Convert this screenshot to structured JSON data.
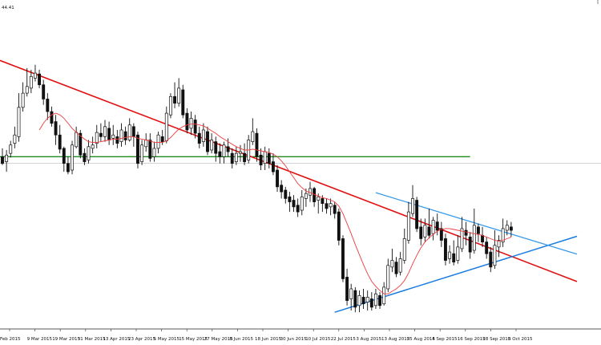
{
  "chart_data": {
    "type": "candlestick",
    "header_label": "44.41",
    "x_tick_labels": [
      "Feb 2015",
      "9 Mar 2015",
      "19 Mar 2015",
      "31 Mar 2015",
      "13 Apr 2015",
      "23 Apr 2015",
      "5 May 2015",
      "15 May 2015",
      "27 May 2015",
      "8 Jun 2015",
      "18 Jun 2015",
      "30 Jun 2015",
      "10 Jul 2015",
      "22 Jul 2015",
      "3 Aug 2015",
      "13 Aug 2015",
      "25 Aug 2015",
      "4 Sep 2015",
      "16 Sep 2015",
      "28 Sep 2015",
      "8 Oct 2015"
    ],
    "candle_values": [
      [
        186,
        178,
        196,
        176
      ],
      [
        180,
        188,
        194,
        168
      ],
      [
        190,
        200,
        205,
        185
      ],
      [
        202,
        212,
        222,
        196
      ],
      [
        210,
        245,
        262,
        204
      ],
      [
        245,
        262,
        275,
        240
      ],
      [
        262,
        270,
        292,
        258
      ],
      [
        268,
        282,
        290,
        262
      ],
      [
        280,
        286,
        296,
        276
      ],
      [
        285,
        272,
        290,
        268
      ],
      [
        272,
        255,
        278,
        248
      ],
      [
        255,
        240,
        262,
        230
      ],
      [
        240,
        226,
        246,
        222
      ],
      [
        228,
        212,
        236,
        200
      ],
      [
        212,
        195,
        224,
        190
      ],
      [
        196,
        178,
        198,
        168
      ],
      [
        178,
        168,
        186,
        165
      ],
      [
        170,
        200,
        205,
        165
      ],
      [
        198,
        215,
        222,
        196
      ],
      [
        214,
        188,
        218,
        184
      ],
      [
        190,
        180,
        196,
        176
      ],
      [
        182,
        198,
        206,
        178
      ],
      [
        196,
        200,
        210,
        190
      ],
      [
        202,
        215,
        224,
        196
      ],
      [
        214,
        210,
        226,
        204
      ],
      [
        210,
        222,
        230,
        204
      ],
      [
        220,
        206,
        228,
        200
      ],
      [
        208,
        212,
        224,
        200
      ],
      [
        210,
        202,
        218,
        196
      ],
      [
        204,
        218,
        226,
        198
      ],
      [
        216,
        206,
        222,
        200
      ],
      [
        206,
        224,
        232,
        204
      ],
      [
        222,
        210,
        226,
        198
      ],
      [
        212,
        178,
        216,
        172
      ],
      [
        180,
        200,
        206,
        176
      ],
      [
        198,
        206,
        214,
        192
      ],
      [
        206,
        184,
        214,
        180
      ],
      [
        186,
        196,
        204,
        180
      ],
      [
        196,
        212,
        216,
        190
      ],
      [
        210,
        204,
        218,
        200
      ],
      [
        205,
        238,
        246,
        202
      ],
      [
        236,
        258,
        262,
        232
      ],
      [
        258,
        250,
        275,
        244
      ],
      [
        250,
        268,
        280,
        246
      ],
      [
        266,
        236,
        272,
        232
      ],
      [
        238,
        218,
        244,
        214
      ],
      [
        220,
        232,
        240,
        212
      ],
      [
        230,
        214,
        236,
        208
      ],
      [
        214,
        202,
        222,
        196
      ],
      [
        204,
        218,
        226,
        198
      ],
      [
        216,
        192,
        222,
        188
      ],
      [
        194,
        206,
        214,
        190
      ],
      [
        204,
        190,
        210,
        180
      ],
      [
        192,
        186,
        202,
        178
      ],
      [
        186,
        200,
        204,
        178
      ],
      [
        198,
        192,
        208,
        186
      ],
      [
        190,
        178,
        196,
        172
      ],
      [
        180,
        190,
        198,
        176
      ],
      [
        190,
        192,
        200,
        180
      ],
      [
        190,
        180,
        202,
        176
      ],
      [
        182,
        206,
        212,
        178
      ],
      [
        204,
        216,
        232,
        200
      ],
      [
        214,
        186,
        220,
        180
      ],
      [
        188,
        176,
        196,
        170
      ],
      [
        178,
        192,
        198,
        170
      ],
      [
        190,
        178,
        196,
        172
      ],
      [
        180,
        168,
        190,
        164
      ],
      [
        170,
        150,
        176,
        144
      ],
      [
        152,
        144,
        158,
        136
      ],
      [
        146,
        136,
        150,
        130
      ],
      [
        138,
        132,
        144,
        120
      ],
      [
        134,
        126,
        140,
        120
      ],
      [
        128,
        120,
        136,
        114
      ],
      [
        122,
        138,
        146,
        116
      ],
      [
        136,
        142,
        148,
        126
      ],
      [
        140,
        148,
        156,
        132
      ],
      [
        148,
        132,
        150,
        126
      ],
      [
        134,
        138,
        142,
        118
      ],
      [
        136,
        130,
        140,
        120
      ],
      [
        130,
        124,
        136,
        118
      ],
      [
        126,
        130,
        136,
        116
      ],
      [
        128,
        118,
        132,
        112
      ],
      [
        120,
        86,
        124,
        80
      ],
      [
        88,
        40,
        92,
        36
      ],
      [
        42,
        14,
        52,
        8
      ],
      [
        16,
        28,
        34,
        2
      ],
      [
        26,
        6,
        30,
        0
      ],
      [
        8,
        20,
        26,
        0
      ],
      [
        18,
        10,
        28,
        4
      ],
      [
        12,
        18,
        26,
        2
      ],
      [
        16,
        6,
        24,
        2
      ],
      [
        8,
        22,
        28,
        4
      ],
      [
        20,
        8,
        24,
        4
      ],
      [
        10,
        30,
        36,
        8
      ],
      [
        28,
        56,
        64,
        24
      ],
      [
        54,
        62,
        76,
        48
      ],
      [
        60,
        46,
        66,
        42
      ],
      [
        48,
        64,
        72,
        44
      ],
      [
        62,
        88,
        100,
        58
      ],
      [
        86,
        120,
        132,
        82
      ],
      [
        118,
        136,
        152,
        114
      ],
      [
        134,
        100,
        138,
        96
      ],
      [
        102,
        88,
        112,
        80
      ],
      [
        90,
        104,
        112,
        84
      ],
      [
        102,
        92,
        124,
        88
      ],
      [
        94,
        110,
        114,
        86
      ],
      [
        108,
        98,
        118,
        92
      ],
      [
        100,
        86,
        108,
        78
      ],
      [
        88,
        62,
        94,
        56
      ],
      [
        64,
        72,
        80,
        58
      ],
      [
        70,
        60,
        86,
        56
      ],
      [
        62,
        78,
        92,
        58
      ],
      [
        76,
        100,
        114,
        72
      ],
      [
        98,
        92,
        108,
        80
      ],
      [
        90,
        72,
        96,
        64
      ],
      [
        74,
        104,
        124,
        70
      ],
      [
        102,
        94,
        106,
        84
      ],
      [
        92,
        84,
        102,
        78
      ],
      [
        84,
        70,
        90,
        64
      ],
      [
        72,
        54,
        78,
        48
      ],
      [
        56,
        80,
        98,
        52
      ],
      [
        78,
        86,
        92,
        66
      ],
      [
        84,
        100,
        112,
        78
      ],
      [
        98,
        104,
        110,
        92
      ],
      [
        102,
        98,
        108,
        90
      ]
    ],
    "ma_values": [
      null,
      null,
      null,
      null,
      null,
      null,
      null,
      null,
      null,
      218,
      226,
      232,
      236,
      238,
      236,
      232,
      226,
      220,
      215,
      211,
      207,
      204,
      203,
      203,
      204,
      205,
      206,
      207,
      207,
      208,
      209,
      210,
      210,
      208,
      207,
      206,
      205,
      203,
      203,
      203,
      205,
      209,
      214,
      219,
      222,
      224,
      225,
      225,
      224,
      223,
      220,
      217,
      214,
      210,
      207,
      204,
      201,
      198,
      196,
      194,
      194,
      195,
      194,
      193,
      192,
      191,
      189,
      186,
      181,
      175,
      168,
      161,
      154,
      149,
      145,
      143,
      141,
      139,
      137,
      136,
      134,
      132,
      127,
      118,
      106,
      94,
      81,
      69,
      57,
      46,
      37,
      31,
      26,
      22,
      22,
      25,
      28,
      32,
      38,
      47,
      58,
      68,
      77,
      84,
      89,
      93,
      97,
      99,
      100,
      100,
      99,
      98,
      97,
      96,
      95,
      94,
      93,
      92,
      90,
      88,
      86,
      85,
      86,
      88,
      90
    ],
    "overlays": {
      "downtrend_line": {
        "color": "#e01010",
        "from": [
          0,
          300
        ],
        "to": [
          133,
          50
        ]
      },
      "lower_support_line": {
        "color": "#1a7ce0",
        "from": [
          81,
          0
        ],
        "to": [
          133,
          80
        ]
      },
      "upper_resistance_line": {
        "color": "#3a9ae8",
        "from": [
          91,
          143
        ],
        "to": [
          133,
          80
        ]
      },
      "horizontal_level": {
        "color": "#1e8c1e",
        "value": 186
      },
      "gray_level": {
        "color": "#bbbbbb",
        "value": 178
      }
    },
    "y_value_range": [
      -20,
      360
    ],
    "moving_average_color": "#ee3b3b",
    "candle_body_color": "#ffffff",
    "candle_outline_color": "#111111",
    "grid": false
  }
}
